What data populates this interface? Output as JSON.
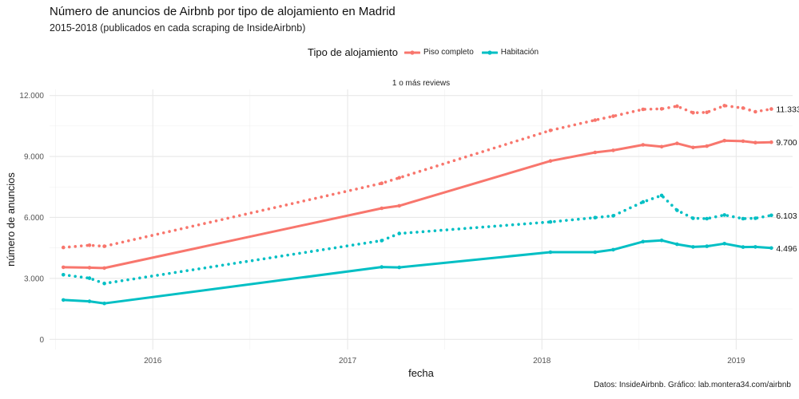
{
  "header": {
    "title": "Número de anuncios de Airbnb por tipo de alojamiento en Madrid",
    "subtitle": "2015-2018 (publicados en cada scraping de InsideAirbnb)"
  },
  "legend": {
    "title": "Tipo de alojamiento",
    "items": [
      {
        "label": "Piso completo",
        "color": "#F8766D"
      },
      {
        "label": "Habitación",
        "color": "#00BFC4"
      }
    ]
  },
  "facet_label": "1 o más reviews",
  "caption": "Datos: InsideAirbnb. Gráfico: lab.montera34.com/airbnb",
  "chart_data": {
    "type": "line",
    "title": "Número de anuncios de Airbnb por tipo de alojamiento en Madrid",
    "subtitle": "2015-2018 (publicados en cada scraping de InsideAirbnb)",
    "xlabel": "fecha",
    "ylabel": "número de anuncios",
    "xlim": [
      "2015-06-21",
      "2019-04-17"
    ],
    "ylim": [
      -500,
      12300
    ],
    "x_ticks": [
      "2016",
      "2017",
      "2018",
      "2019"
    ],
    "x_tick_dates": [
      "2016-01-01",
      "2017-01-01",
      "2018-01-01",
      "2019-01-01"
    ],
    "y_ticks": [
      0,
      3000,
      6000,
      9000,
      12000
    ],
    "y_tick_labels": [
      "0",
      "3.000",
      "6.000",
      "9.000",
      "12.000"
    ],
    "grid": true,
    "legend_position": "top",
    "series": [
      {
        "name": "Piso completo",
        "color": "#F8766D",
        "linetype": "dotted",
        "end_label": "11.333",
        "points": [
          [
            "2015-07-17",
            4520
          ],
          [
            "2015-09-04",
            4630
          ],
          [
            "2015-10-02",
            4580
          ],
          [
            "2017-03-06",
            7680
          ],
          [
            "2017-04-08",
            7950
          ],
          [
            "2018-01-17",
            10280
          ],
          [
            "2018-04-11",
            10790
          ],
          [
            "2018-05-15",
            10980
          ],
          [
            "2018-07-10",
            11320
          ],
          [
            "2018-08-14",
            11340
          ],
          [
            "2018-09-12",
            11470
          ],
          [
            "2018-10-12",
            11150
          ],
          [
            "2018-11-07",
            11170
          ],
          [
            "2018-12-10",
            11500
          ],
          [
            "2019-01-14",
            11380
          ],
          [
            "2019-02-06",
            11200
          ],
          [
            "2019-03-08",
            11333
          ]
        ]
      },
      {
        "name": "Piso completo",
        "color": "#F8766D",
        "linetype": "solid",
        "end_label": "9.700",
        "points": [
          [
            "2015-07-17",
            3550
          ],
          [
            "2015-09-04",
            3530
          ],
          [
            "2015-10-02",
            3510
          ],
          [
            "2017-03-06",
            6450
          ],
          [
            "2017-04-08",
            6570
          ],
          [
            "2018-01-17",
            8780
          ],
          [
            "2018-04-11",
            9200
          ],
          [
            "2018-05-15",
            9300
          ],
          [
            "2018-07-10",
            9570
          ],
          [
            "2018-08-14",
            9480
          ],
          [
            "2018-09-12",
            9640
          ],
          [
            "2018-10-12",
            9440
          ],
          [
            "2018-11-07",
            9510
          ],
          [
            "2018-12-10",
            9780
          ],
          [
            "2019-01-14",
            9750
          ],
          [
            "2019-02-06",
            9680
          ],
          [
            "2019-03-08",
            9700
          ]
        ]
      },
      {
        "name": "Habitación",
        "color": "#00BFC4",
        "linetype": "dotted",
        "end_label": "6.103",
        "points": [
          [
            "2015-07-17",
            3180
          ],
          [
            "2015-09-04",
            3010
          ],
          [
            "2015-10-02",
            2750
          ],
          [
            "2017-03-06",
            4860
          ],
          [
            "2017-04-08",
            5210
          ],
          [
            "2018-01-17",
            5780
          ],
          [
            "2018-04-11",
            5990
          ],
          [
            "2018-05-15",
            6080
          ],
          [
            "2018-07-10",
            6760
          ],
          [
            "2018-08-14",
            7080
          ],
          [
            "2018-09-12",
            6350
          ],
          [
            "2018-10-12",
            5960
          ],
          [
            "2018-11-07",
            5940
          ],
          [
            "2018-12-10",
            6120
          ],
          [
            "2019-01-14",
            5940
          ],
          [
            "2019-02-06",
            5960
          ],
          [
            "2019-03-08",
            6103
          ]
        ]
      },
      {
        "name": "Habitación",
        "color": "#00BFC4",
        "linetype": "solid",
        "end_label": "4.496",
        "points": [
          [
            "2015-07-17",
            1940
          ],
          [
            "2015-09-04",
            1870
          ],
          [
            "2015-10-02",
            1770
          ],
          [
            "2017-03-06",
            3560
          ],
          [
            "2017-04-08",
            3540
          ],
          [
            "2018-01-17",
            4290
          ],
          [
            "2018-04-11",
            4290
          ],
          [
            "2018-05-15",
            4410
          ],
          [
            "2018-07-10",
            4810
          ],
          [
            "2018-08-14",
            4870
          ],
          [
            "2018-09-12",
            4680
          ],
          [
            "2018-10-12",
            4550
          ],
          [
            "2018-11-07",
            4580
          ],
          [
            "2018-12-10",
            4710
          ],
          [
            "2019-01-14",
            4540
          ],
          [
            "2019-02-06",
            4550
          ],
          [
            "2019-03-08",
            4496
          ]
        ]
      }
    ]
  }
}
